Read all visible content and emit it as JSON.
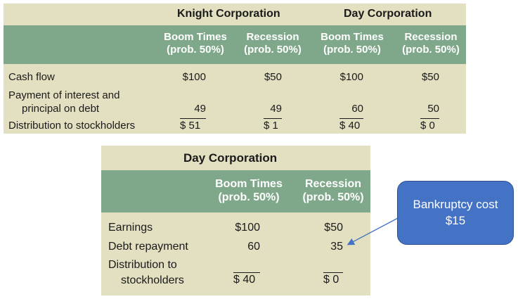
{
  "top_table": {
    "corp_knight": "Knight Corporation",
    "corp_day": "Day Corporation",
    "columns": [
      {
        "line1": "Boom Times",
        "line2": "(prob. 50%)"
      },
      {
        "line1": "Recession",
        "line2": "(prob. 50%)"
      },
      {
        "line1": "Boom Times",
        "line2": "(prob. 50%)"
      },
      {
        "line1": "Recession",
        "line2": "(prob. 50%)"
      }
    ],
    "rows": [
      {
        "label": "Cash flow",
        "values": [
          "$100",
          "$50",
          "$100",
          "$50"
        ]
      },
      {
        "label_line1": "Payment of interest and",
        "label_line2": "principal on debt",
        "values": [
          "49",
          "49",
          "60",
          "50"
        ]
      },
      {
        "label": "Distribution to stockholders",
        "values": [
          "$ 51",
          "$ 1",
          "$ 40",
          "$ 0"
        ]
      }
    ]
  },
  "bottom_table": {
    "corp": "Day Corporation",
    "columns": [
      {
        "line1": "Boom Times",
        "line2": "(prob. 50%)"
      },
      {
        "line1": "Recession",
        "line2": "(prob. 50%)"
      }
    ],
    "rows": [
      {
        "label": "Earnings",
        "values": [
          "$100",
          "$50"
        ]
      },
      {
        "label": "Debt repayment",
        "values": [
          "60",
          "35"
        ]
      },
      {
        "label_line1": "Distribution to",
        "label_line2": "stockholders",
        "values": [
          "$ 40",
          "$ 0"
        ]
      }
    ]
  },
  "callout": {
    "line1": "Bankruptcy cost",
    "line2": "$15",
    "color": "#4472c4"
  },
  "colors": {
    "table_bg": "#e3dfc1",
    "header_bg": "#7fa88b"
  }
}
